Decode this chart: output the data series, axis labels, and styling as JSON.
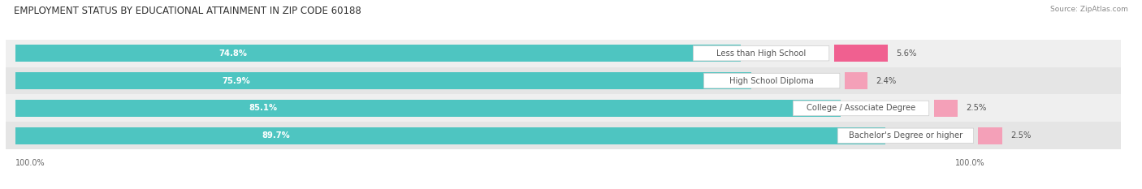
{
  "title": "EMPLOYMENT STATUS BY EDUCATIONAL ATTAINMENT IN ZIP CODE 60188",
  "source": "Source: ZipAtlas.com",
  "categories": [
    "Less than High School",
    "High School Diploma",
    "College / Associate Degree",
    "Bachelor's Degree or higher"
  ],
  "in_labor_force": [
    74.8,
    75.9,
    85.1,
    89.7
  ],
  "unemployed": [
    5.6,
    2.4,
    2.5,
    2.5
  ],
  "teal_color": "#4EC5C1",
  "pink_color_1": "#F06090",
  "pink_color_2": "#F4A0B8",
  "pink_colors": [
    "#F06090",
    "#F4A0B8",
    "#F4A0B8",
    "#F4A0B8"
  ],
  "row_bg_colors": [
    "#EFEFEF",
    "#E5E5E5",
    "#EFEFEF",
    "#E5E5E5"
  ],
  "title_fontsize": 8.5,
  "label_fontsize": 7.2,
  "pct_fontsize": 7.2,
  "tick_fontsize": 7,
  "source_fontsize": 6.5,
  "bar_height": 0.62,
  "x_max": 100,
  "background_color": "#FFFFFF",
  "teal_label_color": "#FFFFFF",
  "cat_label_color": "#555555",
  "pct_label_color": "#555555"
}
